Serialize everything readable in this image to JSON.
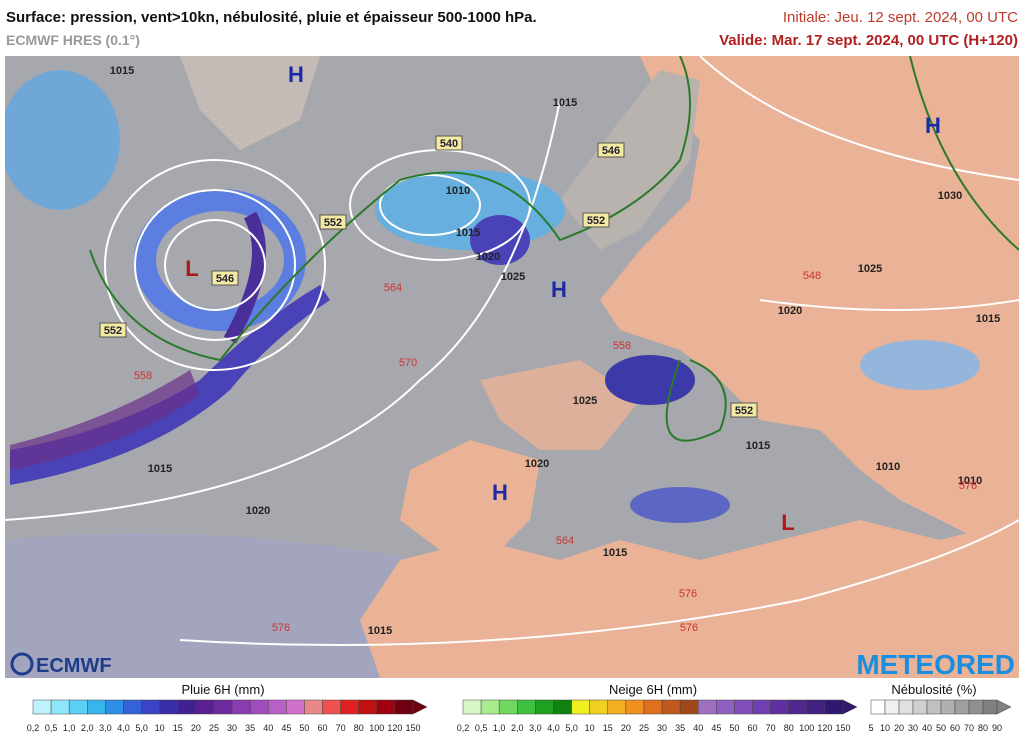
{
  "header": {
    "title": "Surface: pression, vent>10kn, nébulosité, pluie et épaisseur 500-1000 hPa.",
    "model": "ECMWF HRES (0.1°)",
    "initial": "Initiale: Jeu. 12 sept. 2024, 00 UTC",
    "valid": "Valide: Mar. 17 sept. 2024, 00 UTC (H+120)"
  },
  "map": {
    "high_centers": [
      "H",
      "H",
      "H",
      "H"
    ],
    "low_centers": [
      "L",
      "L"
    ],
    "isobar_labels": [
      "1015",
      "1030",
      "1025",
      "1020",
      "1015",
      "1025",
      "1015",
      "1010",
      "1010",
      "1020",
      "1020",
      "1015",
      "1015",
      "1015",
      "1025",
      "1020",
      "1015",
      "1010",
      "1015"
    ],
    "thickness_labels": [
      "564",
      "570",
      "558",
      "558",
      "548",
      "576",
      "576",
      "576",
      "564",
      "576"
    ],
    "boxed_labels": [
      "540",
      "546",
      "546",
      "552",
      "552",
      "552",
      "552"
    ]
  },
  "logos": {
    "left": "ECMWF",
    "right": "METEORED"
  },
  "legends": {
    "rain": {
      "title": "Pluie 6H (mm)",
      "labels": [
        "0,2",
        "0,5",
        "1,0",
        "2,0",
        "3,0",
        "4,0",
        "5,0",
        "10",
        "15",
        "20",
        "25",
        "30",
        "35",
        "40",
        "45",
        "50",
        "60",
        "70",
        "80",
        "100",
        "120",
        "150"
      ]
    },
    "snow": {
      "title": "Neige 6H (mm)",
      "labels": [
        "0,2",
        "0,5",
        "1,0",
        "2,0",
        "3,0",
        "4,0",
        "5,0",
        "10",
        "15",
        "20",
        "25",
        "30",
        "35",
        "40",
        "45",
        "50",
        "60",
        "70",
        "80",
        "100",
        "120",
        "150"
      ]
    },
    "cloud": {
      "title": "Nébulosité (%)",
      "labels": [
        "5",
        "10",
        "20",
        "30",
        "40",
        "50",
        "60",
        "70",
        "80",
        "90"
      ]
    }
  }
}
